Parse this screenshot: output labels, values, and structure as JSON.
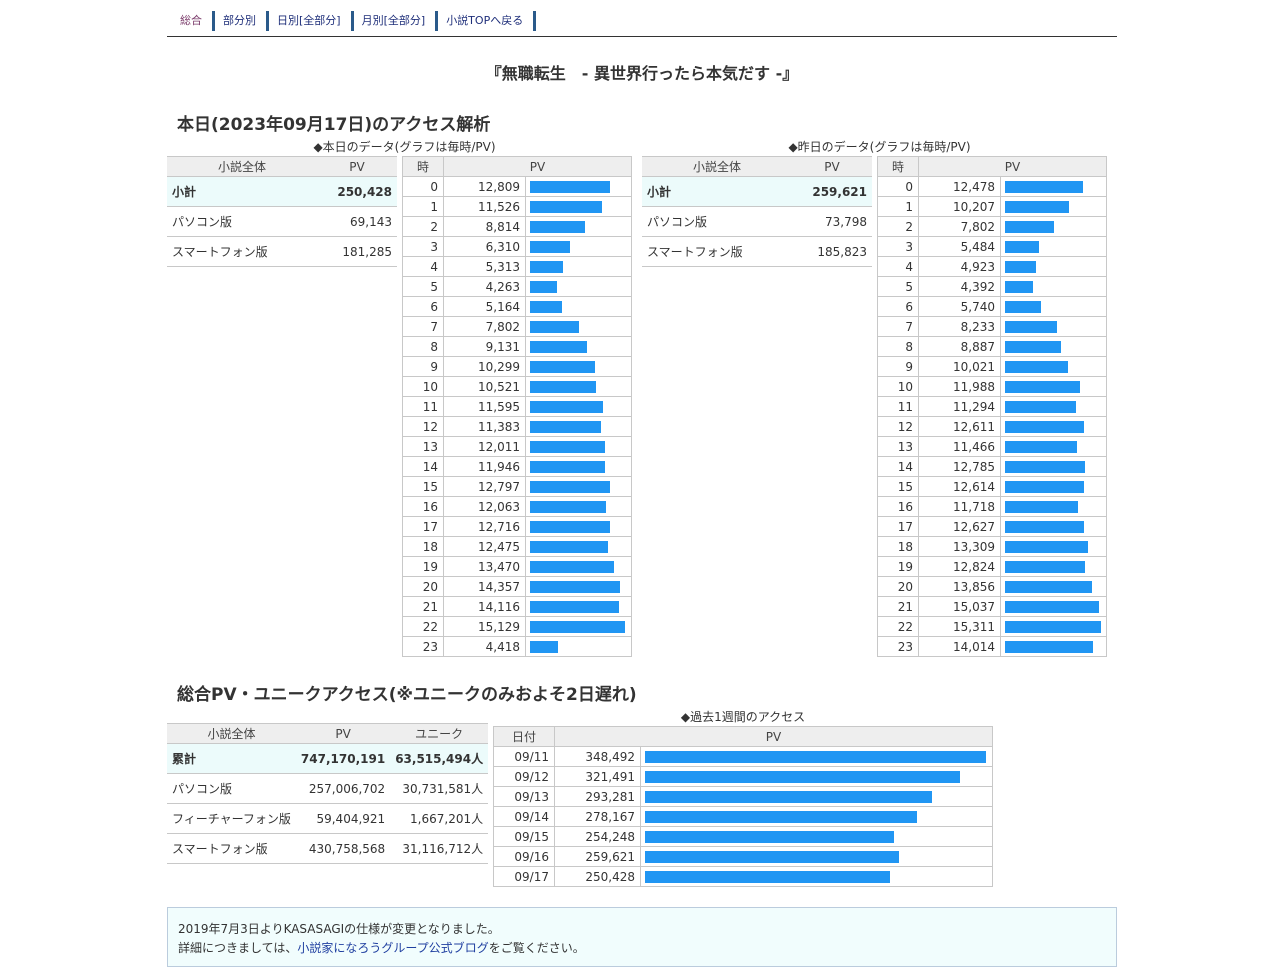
{
  "nav": [
    "総合",
    "部分別",
    "日別[全部分]",
    "月別[全部分]",
    "小説TOPへ戻る"
  ],
  "novel_title": "『無職転生　- 異世界行ったら本気だす -』",
  "today": {
    "heading": "本日(2023年09月17日)のアクセス解析",
    "caption": "◆本日のデータ(グラフは毎時/PV)",
    "summary_headers": [
      "小説全体",
      "PV"
    ],
    "summary": [
      {
        "label": "小計",
        "pv": "250,428"
      },
      {
        "label": "パソコン版",
        "pv": "69,143"
      },
      {
        "label": "スマートフォン版",
        "pv": "181,285"
      }
    ],
    "hour_headers": [
      "時",
      "PV"
    ],
    "hours": [
      {
        "h": "0",
        "pv": "12,809",
        "v": 12809
      },
      {
        "h": "1",
        "pv": "11,526",
        "v": 11526
      },
      {
        "h": "2",
        "pv": "8,814",
        "v": 8814
      },
      {
        "h": "3",
        "pv": "6,310",
        "v": 6310
      },
      {
        "h": "4",
        "pv": "5,313",
        "v": 5313
      },
      {
        "h": "5",
        "pv": "4,263",
        "v": 4263
      },
      {
        "h": "6",
        "pv": "5,164",
        "v": 5164
      },
      {
        "h": "7",
        "pv": "7,802",
        "v": 7802
      },
      {
        "h": "8",
        "pv": "9,131",
        "v": 9131
      },
      {
        "h": "9",
        "pv": "10,299",
        "v": 10299
      },
      {
        "h": "10",
        "pv": "10,521",
        "v": 10521
      },
      {
        "h": "11",
        "pv": "11,595",
        "v": 11595
      },
      {
        "h": "12",
        "pv": "11,383",
        "v": 11383
      },
      {
        "h": "13",
        "pv": "12,011",
        "v": 12011
      },
      {
        "h": "14",
        "pv": "11,946",
        "v": 11946
      },
      {
        "h": "15",
        "pv": "12,797",
        "v": 12797
      },
      {
        "h": "16",
        "pv": "12,063",
        "v": 12063
      },
      {
        "h": "17",
        "pv": "12,716",
        "v": 12716
      },
      {
        "h": "18",
        "pv": "12,475",
        "v": 12475
      },
      {
        "h": "19",
        "pv": "13,470",
        "v": 13470
      },
      {
        "h": "20",
        "pv": "14,357",
        "v": 14357
      },
      {
        "h": "21",
        "pv": "14,116",
        "v": 14116
      },
      {
        "h": "22",
        "pv": "15,129",
        "v": 15129
      },
      {
        "h": "23",
        "pv": "4,418",
        "v": 4418
      }
    ]
  },
  "yesterday": {
    "caption": "◆昨日のデータ(グラフは毎時/PV)",
    "summary_headers": [
      "小説全体",
      "PV"
    ],
    "summary": [
      {
        "label": "小計",
        "pv": "259,621"
      },
      {
        "label": "パソコン版",
        "pv": "73,798"
      },
      {
        "label": "スマートフォン版",
        "pv": "185,823"
      }
    ],
    "hour_headers": [
      "時",
      "PV"
    ],
    "hours": [
      {
        "h": "0",
        "pv": "12,478",
        "v": 12478
      },
      {
        "h": "1",
        "pv": "10,207",
        "v": 10207
      },
      {
        "h": "2",
        "pv": "7,802",
        "v": 7802
      },
      {
        "h": "3",
        "pv": "5,484",
        "v": 5484
      },
      {
        "h": "4",
        "pv": "4,923",
        "v": 4923
      },
      {
        "h": "5",
        "pv": "4,392",
        "v": 4392
      },
      {
        "h": "6",
        "pv": "5,740",
        "v": 5740
      },
      {
        "h": "7",
        "pv": "8,233",
        "v": 8233
      },
      {
        "h": "8",
        "pv": "8,887",
        "v": 8887
      },
      {
        "h": "9",
        "pv": "10,021",
        "v": 10021
      },
      {
        "h": "10",
        "pv": "11,988",
        "v": 11988
      },
      {
        "h": "11",
        "pv": "11,294",
        "v": 11294
      },
      {
        "h": "12",
        "pv": "12,611",
        "v": 12611
      },
      {
        "h": "13",
        "pv": "11,466",
        "v": 11466
      },
      {
        "h": "14",
        "pv": "12,785",
        "v": 12785
      },
      {
        "h": "15",
        "pv": "12,614",
        "v": 12614
      },
      {
        "h": "16",
        "pv": "11,718",
        "v": 11718
      },
      {
        "h": "17",
        "pv": "12,627",
        "v": 12627
      },
      {
        "h": "18",
        "pv": "13,309",
        "v": 13309
      },
      {
        "h": "19",
        "pv": "12,824",
        "v": 12824
      },
      {
        "h": "20",
        "pv": "13,856",
        "v": 13856
      },
      {
        "h": "21",
        "pv": "15,037",
        "v": 15037
      },
      {
        "h": "22",
        "pv": "15,311",
        "v": 15311
      },
      {
        "h": "23",
        "pv": "14,014",
        "v": 14014
      }
    ]
  },
  "total": {
    "heading": "総合PV・ユニークアクセス(※ユニークのみおよそ2日遅れ)",
    "headers": [
      "小説全体",
      "PV",
      "ユニーク"
    ],
    "rows": [
      {
        "label": "累計",
        "pv": "747,170,191",
        "uniq": "63,515,494人"
      },
      {
        "label": "パソコン版",
        "pv": "257,006,702",
        "uniq": "30,731,581人"
      },
      {
        "label": "フィーチャーフォン版",
        "pv": "59,404,921",
        "uniq": "1,667,201人"
      },
      {
        "label": "スマートフォン版",
        "pv": "430,758,568",
        "uniq": "31,116,712人"
      }
    ]
  },
  "week": {
    "caption": "◆過去1週間のアクセス",
    "headers": [
      "日付",
      "PV"
    ],
    "days": [
      {
        "d": "09/11",
        "pv": "348,492",
        "v": 348492
      },
      {
        "d": "09/12",
        "pv": "321,491",
        "v": 321491
      },
      {
        "d": "09/13",
        "pv": "293,281",
        "v": 293281
      },
      {
        "d": "09/14",
        "pv": "278,167",
        "v": 278167
      },
      {
        "d": "09/15",
        "pv": "254,248",
        "v": 254248
      },
      {
        "d": "09/16",
        "pv": "259,621",
        "v": 259621
      },
      {
        "d": "09/17",
        "pv": "250,428",
        "v": 250428
      }
    ]
  },
  "notice": {
    "line1": "2019年7月3日よりKASASAGIの仕様が変更となりました。",
    "line2_pre": "詳細につきましては、",
    "line2_link": "小説家になろうグループ公式ブログ",
    "line2_post": "をご覧ください。"
  },
  "colors": {
    "bar": "#2196f3",
    "total_row_bg": "#ecfbfb",
    "header_bg": "#eeeeee"
  }
}
